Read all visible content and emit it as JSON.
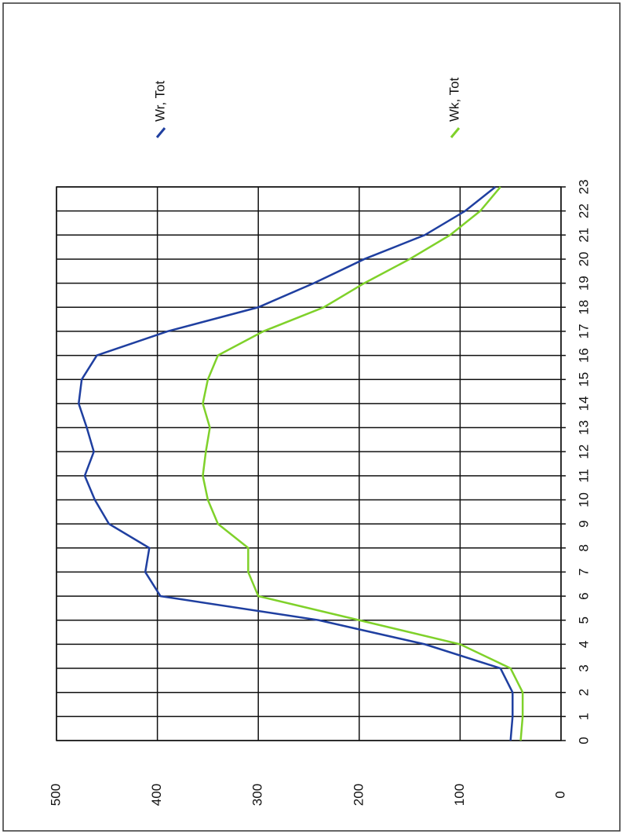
{
  "chart_data": {
    "type": "line",
    "x": [
      0,
      1,
      2,
      3,
      4,
      5,
      6,
      7,
      8,
      9,
      10,
      11,
      12,
      13,
      14,
      15,
      16,
      17,
      18,
      19,
      20,
      21,
      22,
      23
    ],
    "xlim": [
      0,
      23
    ],
    "xticks": [
      0,
      1,
      2,
      3,
      4,
      5,
      6,
      7,
      8,
      9,
      10,
      11,
      12,
      13,
      14,
      15,
      16,
      17,
      18,
      19,
      20,
      21,
      22,
      23
    ],
    "ylim": [
      0,
      500
    ],
    "yticks": [
      0,
      100,
      200,
      300,
      400,
      500
    ],
    "grid": true,
    "series": [
      {
        "name": "Wr, Tot",
        "color": "#1f3fa0",
        "values": [
          50,
          48,
          48,
          60,
          135,
          240,
          397,
          412,
          408,
          448,
          462,
          472,
          463,
          470,
          478,
          475,
          460,
          390,
          300,
          245,
          195,
          135,
          95,
          65
        ]
      },
      {
        "name": "Wk, Tot",
        "color": "#7fd12a",
        "values": [
          40,
          38,
          38,
          50,
          100,
          200,
          300,
          310,
          310,
          340,
          350,
          355,
          352,
          348,
          355,
          350,
          340,
          295,
          235,
          195,
          150,
          110,
          80,
          60
        ]
      }
    ]
  }
}
